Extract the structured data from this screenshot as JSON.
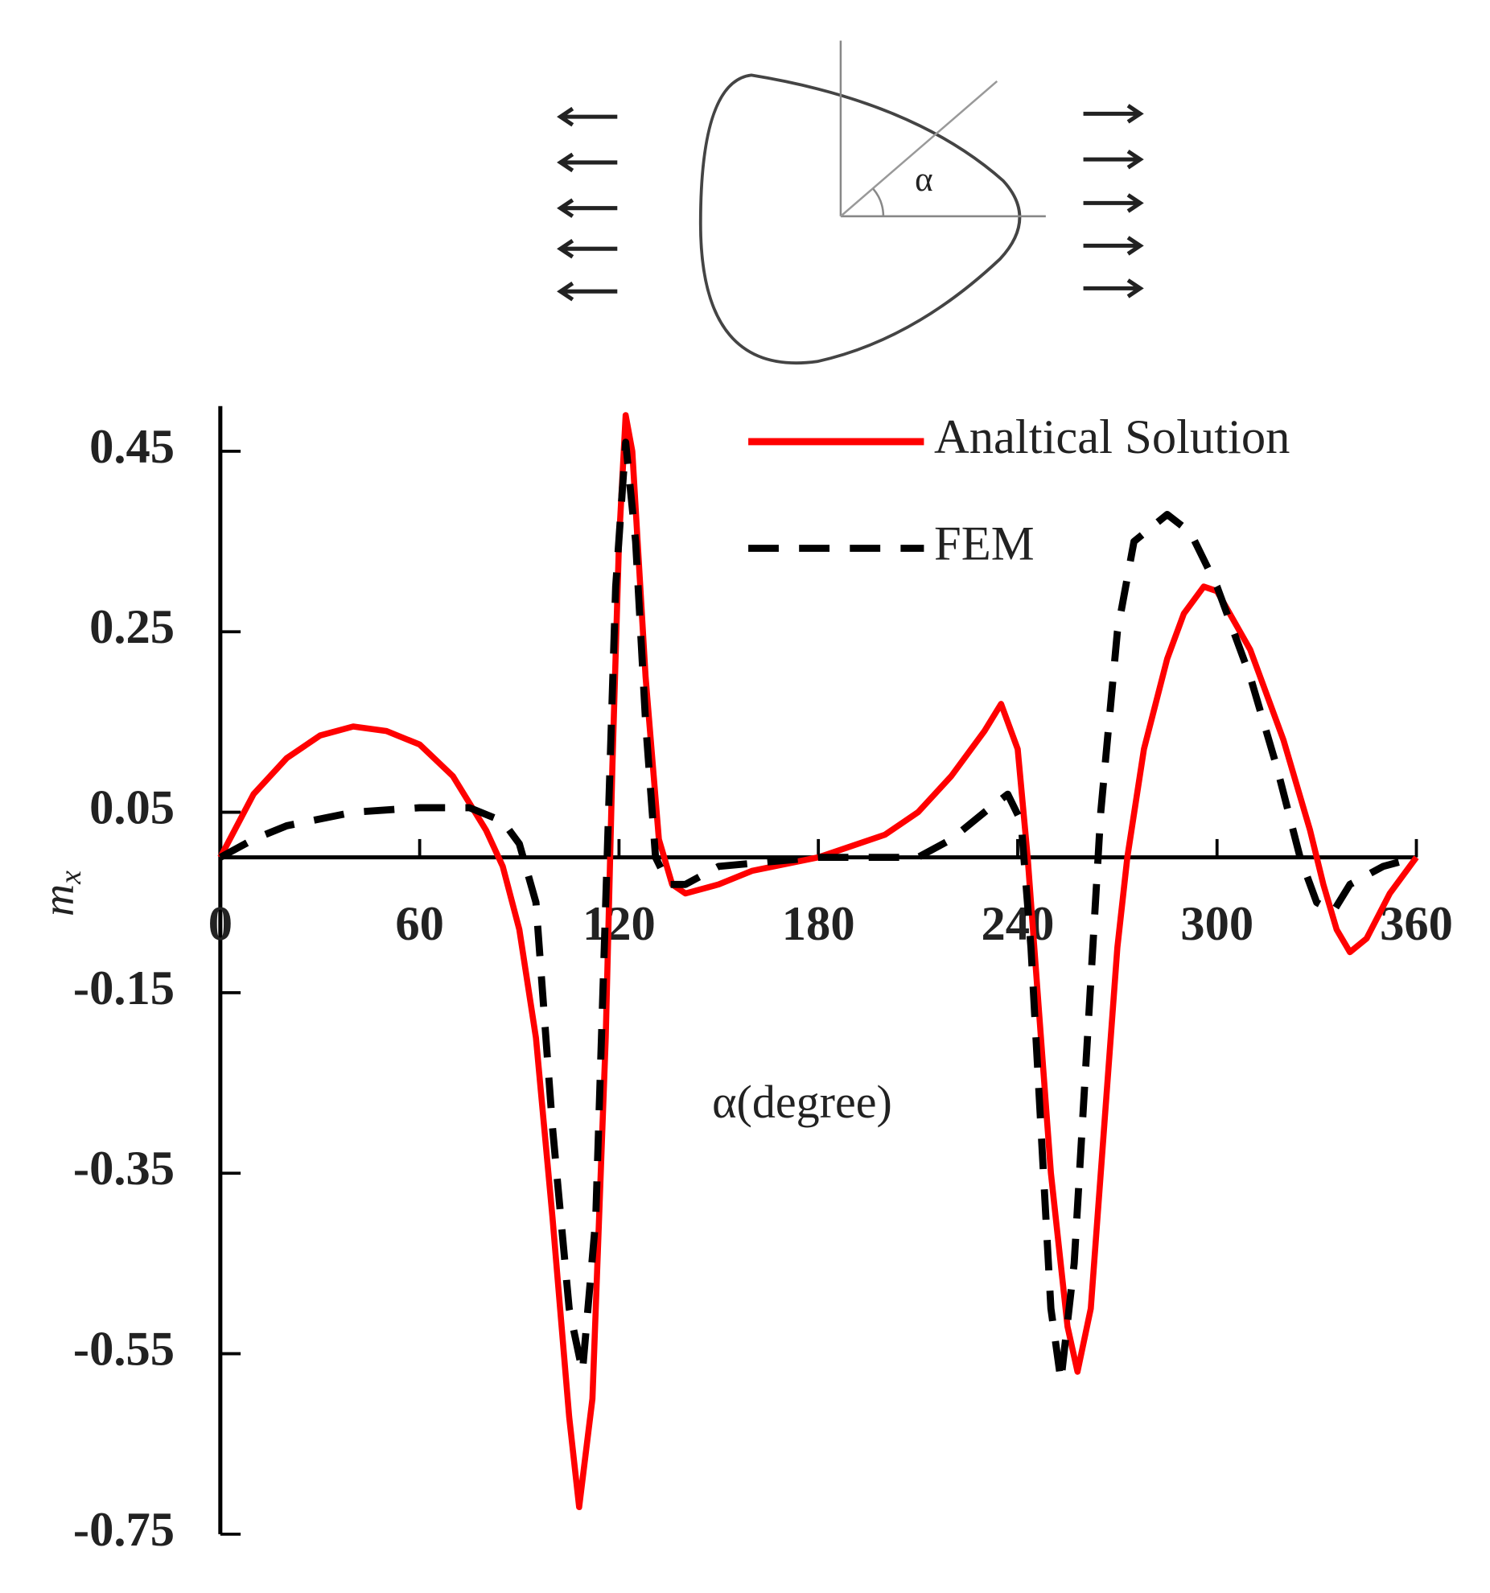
{
  "chart_data": {
    "type": "line",
    "xlabel": "α(degree)",
    "ylabel": "m",
    "ylabel_subscript": "x",
    "diagram_label": "α",
    "xlim": [
      0,
      360
    ],
    "ylim": [
      -0.75,
      0.5
    ],
    "xticks": [
      0,
      60,
      120,
      180,
      240,
      300,
      360
    ],
    "yticks": [
      0.45,
      0.25,
      0.05,
      -0.15,
      -0.35,
      -0.55,
      -0.75
    ],
    "legend": "upper right",
    "series": [
      {
        "name": "Analtical Solution",
        "color": "#ff0000",
        "dash": false,
        "x": [
          0,
          10,
          20,
          30,
          40,
          50,
          60,
          70,
          80,
          85,
          90,
          95,
          100,
          105,
          108,
          112,
          116,
          118,
          120,
          122,
          124,
          128,
          132,
          136,
          140,
          150,
          160,
          180,
          200,
          210,
          220,
          230,
          235,
          240,
          243,
          246,
          250,
          255,
          258,
          262,
          266,
          270,
          273,
          278,
          285,
          290,
          296,
          300,
          310,
          320,
          328,
          332,
          336,
          340,
          345,
          352,
          360
        ],
        "values": [
          0,
          0.07,
          0.11,
          0.135,
          0.145,
          0.14,
          0.125,
          0.09,
          0.03,
          -0.01,
          -0.08,
          -0.2,
          -0.4,
          -0.62,
          -0.72,
          -0.6,
          -0.2,
          0.1,
          0.35,
          0.49,
          0.45,
          0.2,
          0.02,
          -0.03,
          -0.04,
          -0.03,
          -0.015,
          0.0,
          0.025,
          0.05,
          0.09,
          0.14,
          0.17,
          0.12,
          0,
          -0.15,
          -0.35,
          -0.52,
          -0.57,
          -0.5,
          -0.3,
          -0.1,
          0.0,
          0.12,
          0.22,
          0.27,
          0.3,
          0.295,
          0.23,
          0.13,
          0.03,
          -0.03,
          -0.08,
          -0.105,
          -0.09,
          -0.04,
          0.0
        ]
      },
      {
        "name": "FEM",
        "color": "#000000",
        "dash": true,
        "x": [
          0,
          10,
          20,
          40,
          60,
          75,
          85,
          90,
          95,
          100,
          105,
          109,
          113,
          116,
          119,
          122,
          125,
          128,
          131,
          135,
          140,
          150,
          180,
          210,
          220,
          230,
          237,
          241,
          244,
          247,
          250,
          253,
          257,
          261,
          265,
          270,
          275,
          285,
          292,
          300,
          310,
          318,
          325,
          330,
          335,
          340,
          350,
          360
        ],
        "values": [
          0,
          0.02,
          0.035,
          0.05,
          0.055,
          0.055,
          0.04,
          0.015,
          -0.05,
          -0.3,
          -0.5,
          -0.57,
          -0.4,
          -0.05,
          0.3,
          0.46,
          0.35,
          0.15,
          0.0,
          -0.03,
          -0.03,
          -0.01,
          0.0,
          0.0,
          0.02,
          0.05,
          0.07,
          0.04,
          -0.1,
          -0.3,
          -0.5,
          -0.58,
          -0.45,
          -0.2,
          0.05,
          0.25,
          0.35,
          0.38,
          0.36,
          0.3,
          0.2,
          0.1,
          0.0,
          -0.05,
          -0.06,
          -0.03,
          -0.01,
          0.0
        ]
      }
    ]
  }
}
